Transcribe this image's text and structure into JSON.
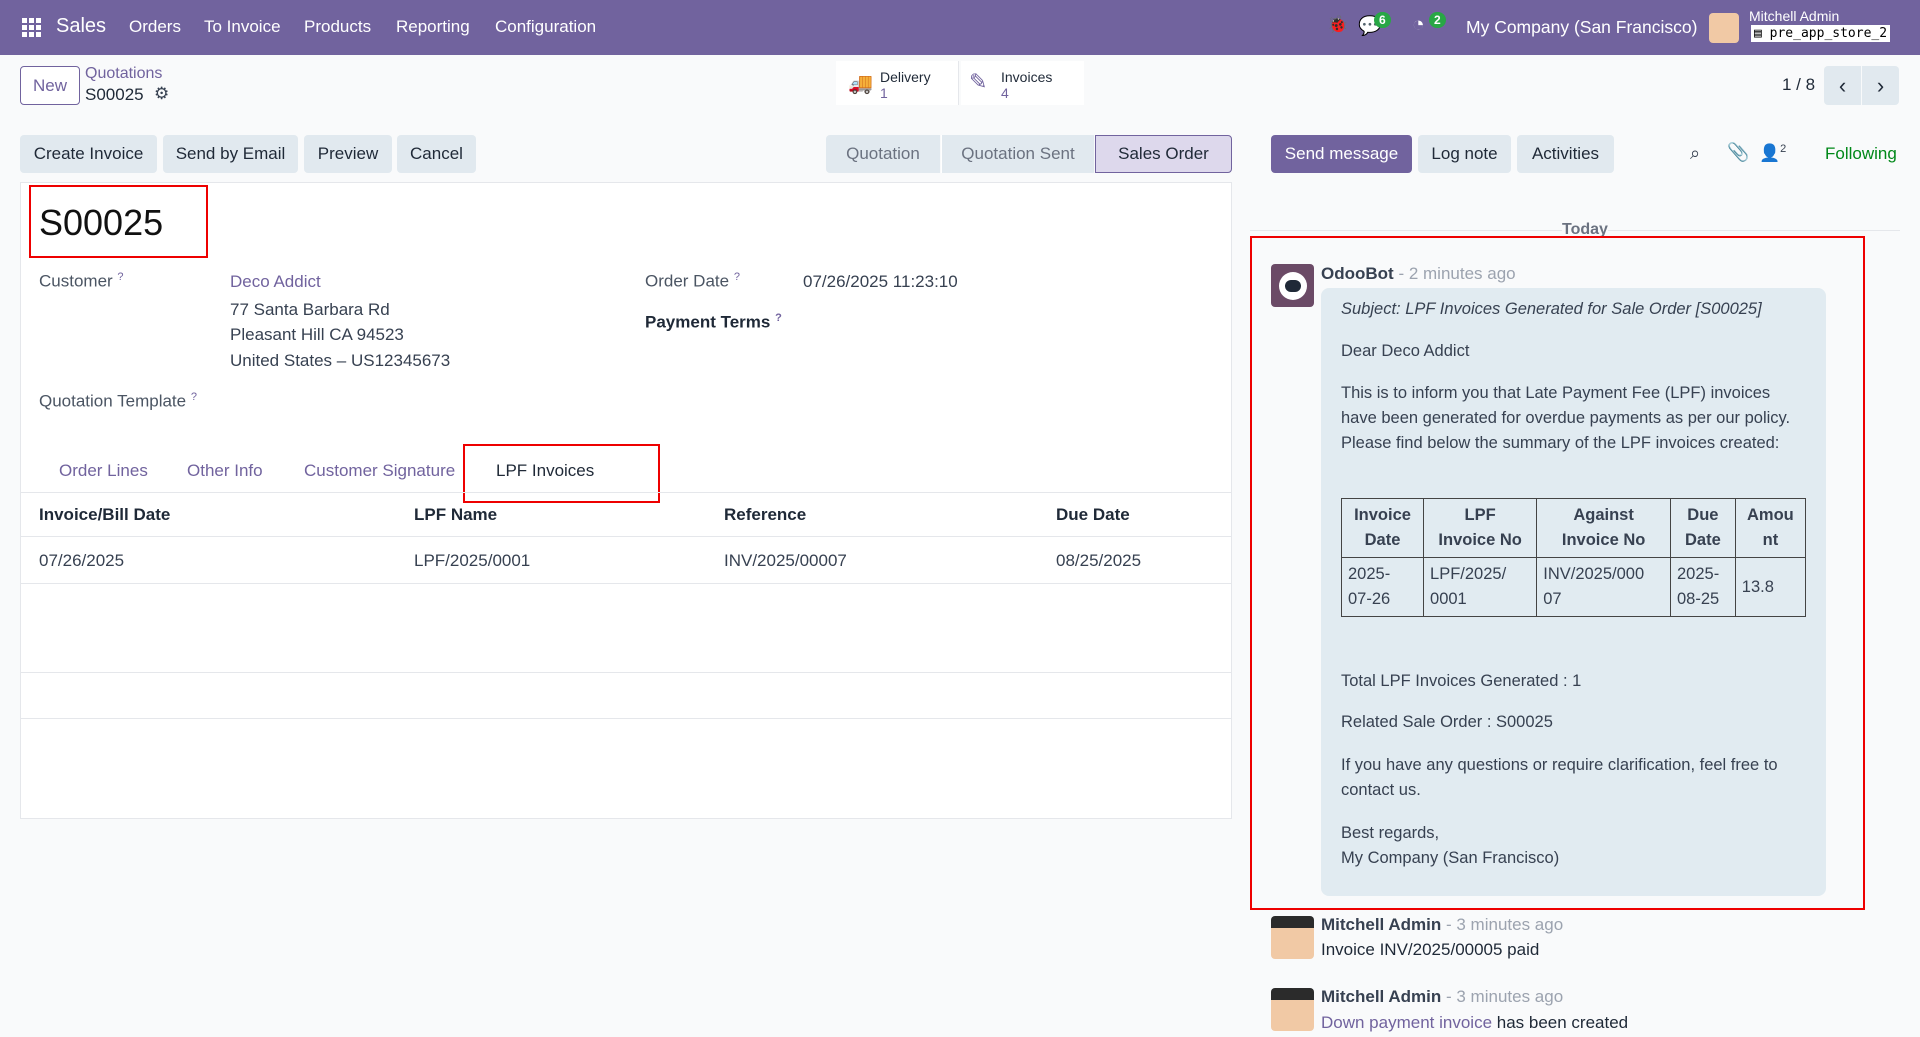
{
  "nav": {
    "app": "Sales",
    "menus": [
      "Orders",
      "To Invoice",
      "Products",
      "Reporting",
      "Configuration"
    ],
    "messages_count": "6",
    "activities_count": "2",
    "company": "My Company (San Francisco)",
    "user": "Mitchell Admin",
    "database": "pre_app_store_2"
  },
  "control": {
    "new_label": "New",
    "breadcrumb_parent": "Quotations",
    "breadcrumb_current": "S00025",
    "delivery_label": "Delivery",
    "delivery_count": "1",
    "invoices_label": "Invoices",
    "invoices_count": "4",
    "pager": "1 / 8"
  },
  "actions": [
    "Create Invoice",
    "Send by Email",
    "Preview",
    "Cancel"
  ],
  "statusbar": {
    "steps": [
      "Quotation",
      "Quotation Sent",
      "Sales Order"
    ],
    "active": "Sales Order"
  },
  "form": {
    "title": "S00025",
    "customer_label": "Customer",
    "customer_name": "Deco Addict",
    "address": [
      "77 Santa Barbara Rd",
      "Pleasant Hill CA 94523",
      "United States – US12345673"
    ],
    "order_date_label": "Order Date",
    "order_date": "07/26/2025 11:23:10",
    "payment_terms_label": "Payment Terms",
    "template_label": "Quotation Template",
    "help": "?",
    "tabs": [
      "Order Lines",
      "Other Info",
      "Customer Signature",
      "LPF Invoices"
    ],
    "active_tab": "LPF Invoices",
    "table": {
      "headers": [
        "Invoice/Bill Date",
        "LPF Name",
        "Reference",
        "Due Date"
      ],
      "rows": [
        [
          "07/26/2025",
          "LPF/2025/0001",
          "INV/2025/00007",
          "08/25/2025"
        ]
      ]
    }
  },
  "chatter": {
    "send_message": "Send message",
    "log_note": "Log note",
    "activities": "Activities",
    "followers_count": "2",
    "following": "Following",
    "today": "Today",
    "messages": [
      {
        "author": "OdooBot",
        "time": "- 2 minutes ago",
        "subject": "Subject: LPF Invoices Generated for Sale Order [S00025]",
        "greeting": "Dear Deco Addict",
        "body": "This is to inform you that Late Payment Fee (LPF) invoices have been generated for overdue payments as per our policy. Please find below the summary of the LPF invoices created:",
        "table": {
          "headers": [
            [
              "Invoice",
              "Date"
            ],
            [
              "LPF",
              "Invoice No"
            ],
            [
              "Against",
              "Invoice No"
            ],
            [
              "Due",
              "Date"
            ],
            [
              "Amou",
              "nt"
            ]
          ],
          "row": [
            [
              "2025-",
              "07-26"
            ],
            [
              "LPF/2025/",
              "0001"
            ],
            [
              "INV/2025/000",
              "07"
            ],
            [
              "2025-",
              "08-25"
            ],
            [
              "13.8"
            ]
          ]
        },
        "total": "Total LPF Invoices Generated : 1",
        "related": "Related Sale Order : S00025",
        "questions": "If you have any questions or require clarification, feel free to contact us.",
        "regards": "Best regards,",
        "signature": "My Company (San Francisco)"
      },
      {
        "author": "Mitchell Admin",
        "time": "- 3 minutes ago",
        "text": "Invoice INV/2025/00005 paid"
      },
      {
        "author": "Mitchell Admin",
        "time": "- 3 minutes ago",
        "link": "Down payment invoice",
        "text": " has been created"
      }
    ]
  },
  "colors": {
    "brand": "#71639e",
    "following": "#008818",
    "highlight": "#ee0000",
    "badge": "#28a745"
  }
}
